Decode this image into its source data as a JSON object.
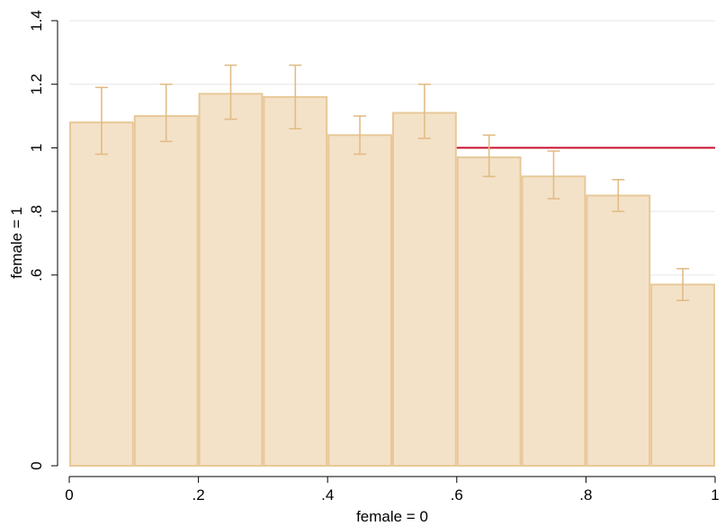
{
  "chart_data": {
    "type": "bar",
    "xlabel": "female = 0",
    "ylabel": "female = 1",
    "xlim": [
      0,
      1
    ],
    "ylim": [
      0,
      1.4
    ],
    "x_ticks": [
      {
        "value": 0,
        "label": "0"
      },
      {
        "value": 0.2,
        "label": ".2"
      },
      {
        "value": 0.4,
        "label": ".4"
      },
      {
        "value": 0.6,
        "label": ".6"
      },
      {
        "value": 0.8,
        "label": ".8"
      },
      {
        "value": 1,
        "label": "1"
      }
    ],
    "y_ticks": [
      {
        "value": 0,
        "label": "0"
      },
      {
        "value": 0.6,
        "label": ".6"
      },
      {
        "value": 0.8,
        "label": ".8"
      },
      {
        "value": 1,
        "label": "1"
      },
      {
        "value": 1.2,
        "label": "1.2"
      },
      {
        "value": 1.4,
        "label": "1.4"
      }
    ],
    "grid": "horizontal",
    "reference_line": {
      "y": 1,
      "x_start": 0.6,
      "x_end": 1,
      "color": "#c8102e"
    },
    "bars": [
      {
        "x0": 0.0,
        "x1": 0.1,
        "value": 1.08,
        "ci_low": 0.98,
        "ci_high": 1.19
      },
      {
        "x0": 0.1,
        "x1": 0.2,
        "value": 1.1,
        "ci_low": 1.02,
        "ci_high": 1.2
      },
      {
        "x0": 0.2,
        "x1": 0.3,
        "value": 1.17,
        "ci_low": 1.09,
        "ci_high": 1.26
      },
      {
        "x0": 0.3,
        "x1": 0.4,
        "value": 1.16,
        "ci_low": 1.06,
        "ci_high": 1.26
      },
      {
        "x0": 0.4,
        "x1": 0.5,
        "value": 1.04,
        "ci_low": 0.98,
        "ci_high": 1.1
      },
      {
        "x0": 0.5,
        "x1": 0.6,
        "value": 1.11,
        "ci_low": 1.03,
        "ci_high": 1.2
      },
      {
        "x0": 0.6,
        "x1": 0.7,
        "value": 0.97,
        "ci_low": 0.91,
        "ci_high": 1.04
      },
      {
        "x0": 0.7,
        "x1": 0.8,
        "value": 0.91,
        "ci_low": 0.84,
        "ci_high": 0.99
      },
      {
        "x0": 0.8,
        "x1": 0.9,
        "value": 0.85,
        "ci_low": 0.8,
        "ci_high": 0.9
      },
      {
        "x0": 0.9,
        "x1": 1.0,
        "value": 0.57,
        "ci_low": 0.52,
        "ci_high": 0.62
      }
    ],
    "colors": {
      "bar_fill": "#f3e2c8",
      "bar_edge": "#e8c898",
      "error_bar": "#e2bc86",
      "grid": "#e6e6e6"
    }
  }
}
